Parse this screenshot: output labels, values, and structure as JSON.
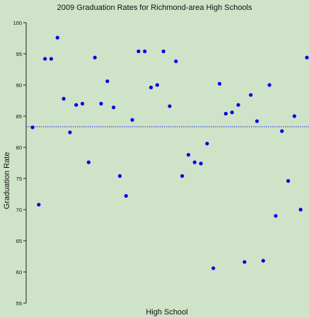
{
  "chart_data": {
    "type": "scatter",
    "title": "2009 Graduation Rates for Richmond-area High Schools",
    "xlabel": "High School",
    "ylabel": "Graduation Rate",
    "ylim": [
      55,
      100
    ],
    "yticks": [
      55,
      60,
      65,
      70,
      75,
      80,
      85,
      90,
      95,
      100
    ],
    "grid": false,
    "legend": "none",
    "reference_line": {
      "value": 83.3,
      "style": "dotted"
    },
    "colors": {
      "points": "#0000e6",
      "reference_line": "#2a3fd0",
      "background": "#cfe3c8"
    },
    "values": [
      83.2,
      70.8,
      94.2,
      94.2,
      97.6,
      87.8,
      82.4,
      86.8,
      87.0,
      77.6,
      94.4,
      87.0,
      90.6,
      86.4,
      75.4,
      72.2,
      84.4,
      95.4,
      95.4,
      89.6,
      90.0,
      95.4,
      86.6,
      93.8,
      75.4,
      78.8,
      77.6,
      77.4,
      80.6,
      60.6,
      90.2,
      85.4,
      85.6,
      86.8,
      61.6,
      88.4,
      84.2,
      61.8,
      90.0,
      69.0,
      82.6,
      74.6,
      85.0,
      70.0,
      94.4
    ]
  }
}
